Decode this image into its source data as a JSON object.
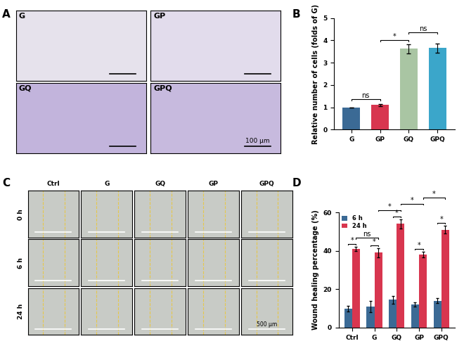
{
  "panel_labels": [
    "A",
    "B",
    "C",
    "D"
  ],
  "images": {
    "A": {
      "labels": [
        "G",
        "GP",
        "GQ",
        "GPQ"
      ],
      "scale_bar": "100 μm"
    },
    "C": {
      "columns": [
        "Ctrl",
        "G",
        "GQ",
        "GP",
        "GPQ"
      ],
      "rows": [
        "0 h",
        "6 h",
        "24 h"
      ],
      "scale_bar": "500 μm"
    }
  },
  "chart_data": [
    {
      "type": "bar",
      "y_label": "Relative number of cells (folds of G)",
      "categories": [
        "G",
        "GP",
        "GQ",
        "GPQ"
      ],
      "values": [
        1,
        1.1,
        3.62,
        3.65
      ],
      "errors": [
        0,
        0.05,
        0.2,
        0.2
      ],
      "colors": [
        "#3b6a95",
        "#d8364f",
        "#a9c5a3",
        "#3ba6ca"
      ],
      "ylim": [
        0,
        5
      ],
      "yticks": [
        0,
        1,
        2,
        3,
        4,
        5
      ],
      "annotations": [
        {
          "text": "ns",
          "from": 0,
          "to": 1
        },
        {
          "text": "*",
          "from": 1,
          "to": 2
        },
        {
          "text": "ns",
          "from": 2,
          "to": 3
        }
      ]
    },
    {
      "type": "grouped_bar",
      "y_label": "Wound healing percentage (%)",
      "categories": [
        "Ctrl",
        "G",
        "GQ",
        "GP",
        "GPQ"
      ],
      "series": [
        {
          "name": "6 h",
          "color": "#3b6a95",
          "values": [
            10,
            11,
            14.5,
            12,
            14
          ],
          "errors": [
            1.5,
            3,
            2,
            1,
            1.2
          ]
        },
        {
          "name": "24 h",
          "color": "#d8364f",
          "values": [
            41,
            39,
            54,
            38,
            51
          ],
          "errors": [
            1,
            2.5,
            2.5,
            1.5,
            2
          ]
        }
      ],
      "ylim": [
        0,
        60
      ],
      "yticks": [
        0,
        20,
        40,
        60
      ],
      "legend": "upper left",
      "annotations": [
        {
          "text": "*",
          "from": [
            0,
            0
          ],
          "to": [
            0,
            1
          ]
        },
        {
          "text": "*",
          "from": [
            1,
            0
          ],
          "to": [
            1,
            1
          ]
        },
        {
          "text": "*",
          "from": [
            2,
            0
          ],
          "to": [
            2,
            1
          ]
        },
        {
          "text": "*",
          "from": [
            3,
            0
          ],
          "to": [
            3,
            1
          ]
        },
        {
          "text": "*",
          "from": [
            4,
            0
          ],
          "to": [
            4,
            1
          ]
        },
        {
          "text": "ns",
          "from": [
            0,
            1
          ],
          "to": [
            1,
            1
          ]
        },
        {
          "text": "*",
          "from": [
            1,
            1
          ],
          "to": [
            2,
            1
          ]
        },
        {
          "text": "*",
          "from": [
            2,
            1
          ],
          "to": [
            3,
            1
          ]
        },
        {
          "text": "*",
          "from": [
            3,
            1
          ],
          "to": [
            4,
            1
          ]
        }
      ]
    }
  ]
}
